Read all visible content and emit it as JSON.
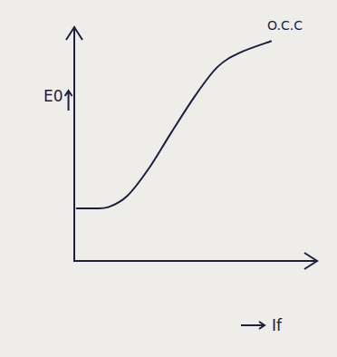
{
  "chart_data": {
    "type": "line",
    "x_label": "If",
    "y_label": "E0",
    "x": [
      0.1,
      0.7,
      1.4,
      2.2,
      3.1,
      4.0,
      5.0,
      5.9,
      6.8,
      8.1
    ],
    "series": [
      {
        "name": "O.C.C",
        "color": "#1c1f3f",
        "values": [
          2.25,
          2.25,
          2.3,
          2.8,
          4.0,
          5.5,
          7.1,
          8.3,
          8.9,
          9.4
        ]
      }
    ],
    "xlim": [
      0,
      10
    ],
    "ylim": [
      0,
      10
    ],
    "xticks": [],
    "yticks": [],
    "grid": false,
    "tick_labels": false
  }
}
